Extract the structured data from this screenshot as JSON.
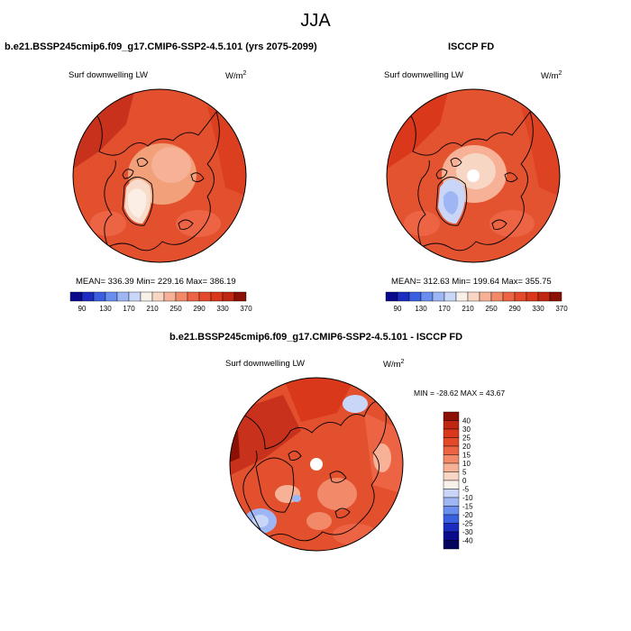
{
  "header": {
    "season": "JJA"
  },
  "panels": [
    {
      "title": "b.e21.BSSP245cmip6.f09_g17.CMIP6-SSP2-4.5.101 (yrs 2075-2099)",
      "variable": "Surf downwelling LW",
      "units": "W/m",
      "units_exp": "2",
      "stats": {
        "mean": "336.39",
        "min": "229.16",
        "max": "386.19",
        "text": "MEAN= 336.39  Min= 229.16  Max= 386.19"
      }
    },
    {
      "title": "ISCCP FD",
      "variable": "Surf downwelling LW",
      "units": "W/m",
      "units_exp": "2",
      "stats": {
        "mean": "312.63",
        "min": "199.64",
        "max": "355.75",
        "text": "MEAN= 312.63  Min= 199.64  Max= 355.75"
      }
    },
    {
      "title": "b.e21.BSSP245cmip6.f09_g17.CMIP6-SSP2-4.5.101 - ISCCP FD",
      "variable": "Surf downwelling LW",
      "units": "W/m",
      "units_exp": "2",
      "stats": {
        "min": "-28.62",
        "max": "43.67",
        "text": "MIN = -28.62 MAX =  43.67"
      }
    }
  ],
  "colorbars": {
    "absolute": {
      "labels": [
        "90",
        "130",
        "170",
        "210",
        "250",
        "290",
        "330",
        "370"
      ],
      "colors": [
        "#0a0a8c",
        "#1c2cc0",
        "#3a5fe0",
        "#6a8ef0",
        "#9fb6f4",
        "#c9d6f7",
        "#f7f1ea",
        "#f8d6c4",
        "#f6b196",
        "#f28a6a",
        "#ec6444",
        "#e44a2a",
        "#d9381a",
        "#c02712",
        "#8c1006"
      ]
    },
    "difference": {
      "labels": [
        "40",
        "30",
        "25",
        "20",
        "15",
        "10",
        "5",
        "0",
        "-5",
        "-10",
        "-15",
        "-20",
        "-25",
        "-30",
        "-40"
      ],
      "colors": [
        "#8c1006",
        "#c02712",
        "#d9381a",
        "#e44a2a",
        "#ec6444",
        "#f28a6a",
        "#f6b196",
        "#f8d6c4",
        "#f7f1ea",
        "#c9d6f7",
        "#9fb6f4",
        "#6a8ef0",
        "#3a5fe0",
        "#1c2cc0",
        "#0a0a8c",
        "#050560"
      ]
    }
  },
  "colors": {
    "field_main": "#e2502e",
    "field_deep": "#c8321c",
    "field_light": "#f1a07a",
    "field_pale": "#f8dccb",
    "field_blue": "#9fb6f4",
    "coast": "#000000"
  }
}
